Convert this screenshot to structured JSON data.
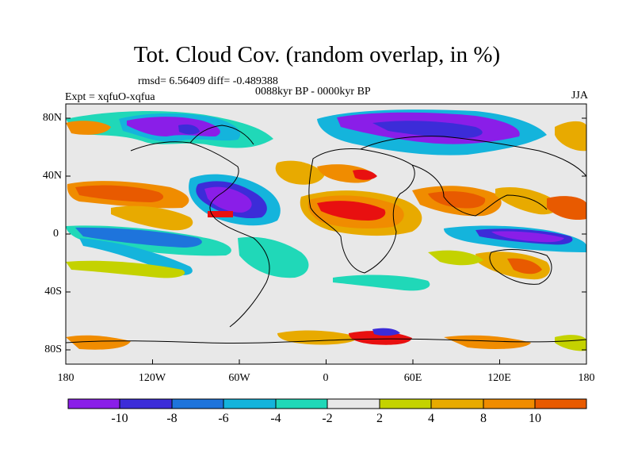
{
  "title": "Tot. Cloud Cov. (random overlap, in %)",
  "stats": "rmsd= 6.56409 diff= -0.489388",
  "period": "0088kyr BP - 0000kyr BP",
  "expt": "Expt = xqfuO-xqfua",
  "season": "JJA",
  "lat_labels": [
    "80N",
    "40N",
    "0",
    "40S",
    "80S"
  ],
  "lon_labels": [
    "180",
    "120W",
    "60W",
    "0",
    "60E",
    "120E",
    "180"
  ],
  "colorbar": {
    "colors": [
      "#8a1ee8",
      "#3c2cd8",
      "#1e74dc",
      "#14b4dc",
      "#20d8b8",
      "#e8e8e8",
      "#c4d200",
      "#e8aa00",
      "#f08c00",
      "#e85a00",
      "#e81010"
    ],
    "labels": [
      "-10",
      "-8",
      "-6",
      "-4",
      "-2",
      "2",
      "4",
      "8",
      "10"
    ]
  }
}
